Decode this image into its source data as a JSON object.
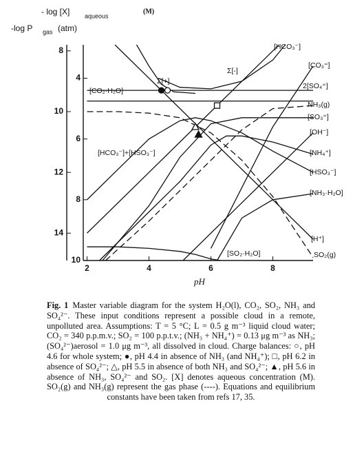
{
  "chart_data": {
    "type": "line",
    "y_label": "- log [X]",
    "y_label_sub": "aqueous",
    "y_unit": "(M)",
    "y2_label": "-log P",
    "y2_label_sub": "gas",
    "y2_unit": "(atm)",
    "x_label": "pH",
    "xlim": [
      1.9,
      9.3
    ],
    "xticks": [
      2,
      4,
      6,
      8
    ],
    "ylim": [
      10,
      2.9
    ],
    "yticks": [
      4,
      6,
      8,
      10
    ],
    "y2lim": [
      14.9,
      7.8
    ],
    "y2ticks": [
      8,
      10,
      12,
      14
    ],
    "color": "#111111",
    "series": [
      {
        "name": "[HCO₃⁻]",
        "line_style": "solid",
        "x": [
          2,
          4,
          6,
          8,
          8.2
        ],
        "values": [
          9.1,
          7.1,
          5.1,
          3.1,
          2.9
        ]
      },
      {
        "name": "[CO₃⁼]",
        "line_style": "solid",
        "x": [
          6,
          7,
          8,
          9.3
        ],
        "values": [
          9.6,
          7.6,
          5.6,
          3.6
        ]
      },
      {
        "name": "2[SO₄⁼]",
        "line_style": "solid",
        "x": [
          2,
          9.3
        ],
        "values": [
          4.4,
          4.4
        ]
      },
      {
        "name": "NH₃(g)",
        "line_style": "dashed",
        "x": [
          2.6,
          4,
          5,
          6,
          7,
          8,
          9.3
        ],
        "values": [
          10,
          8.7,
          7.7,
          6.7,
          5.7,
          5.0,
          4.9
        ]
      },
      {
        "name": "[SO₃⁼]",
        "line_style": "solid",
        "x": [
          2.5,
          4,
          5,
          6,
          7,
          8,
          9.3
        ],
        "values": [
          10,
          8.2,
          6.6,
          5.5,
          5.3,
          5.3,
          5.3
        ]
      },
      {
        "name": "[OH⁻]",
        "line_style": "solid",
        "x": [
          5.1,
          7,
          9.3
        ],
        "values": [
          10,
          8.1,
          5.8
        ]
      },
      {
        "name": "[NH₄⁺]",
        "line_style": "solid",
        "x": [
          2.4,
          4,
          5,
          6,
          6.5,
          7,
          8,
          9.3
        ],
        "values": [
          10,
          8.4,
          7.4,
          6.2,
          5.9,
          5.9,
          6.1,
          6.5
        ]
      },
      {
        "name": "[HSO₃⁻]",
        "line_style": "solid",
        "x": [
          2,
          3,
          4,
          5,
          5.5,
          6,
          7,
          8,
          9.3
        ],
        "values": [
          8,
          7,
          6,
          5.4,
          5.3,
          5.4,
          5.8,
          6.4,
          7.1
        ]
      },
      {
        "name": "[NH₃·H₂O]",
        "line_style": "solid",
        "x": [
          6.2,
          7,
          8,
          9.3
        ],
        "values": [
          10,
          8.6,
          8.0,
          7.8
        ]
      },
      {
        "name": "[H⁺]",
        "line_style": "solid",
        "x": [
          2.9,
          9.3
        ],
        "values": [
          2.9,
          9.3
        ]
      },
      {
        "name": "SO₂(g)",
        "line_style": "dashed",
        "x": [
          2,
          3,
          4,
          5,
          6,
          7,
          8,
          9.3
        ],
        "values": [
          5.1,
          5.1,
          5.15,
          5.3,
          5.8,
          6.7,
          7.9,
          9.9
        ]
      },
      {
        "name": "[SO₂·H₂O]",
        "line_style": "solid",
        "x": [
          2,
          3,
          4,
          5,
          5.5,
          6,
          6.3
        ],
        "values": [
          9.55,
          9.55,
          9.6,
          9.7,
          9.8,
          9.95,
          10
        ]
      },
      {
        "name": "[CO₂·H₂O]",
        "line_style": "solid",
        "x": [
          2,
          9.3
        ],
        "values": [
          4.75,
          4.75
        ]
      },
      {
        "name": "Σ[+]",
        "line_style": "solid",
        "x": [
          3.6,
          4,
          4.4,
          4.8,
          5.5
        ],
        "values": [
          2.9,
          3.6,
          4.2,
          4.45,
          4.5
        ]
      },
      {
        "name": "Σ[-]",
        "line_style": "solid",
        "x": [
          4.3,
          5,
          6,
          7,
          8,
          8.4
        ],
        "values": [
          4.0,
          4.3,
          4.35,
          4.1,
          3.4,
          2.9
        ]
      }
    ],
    "markers": [
      {
        "shape": "circle",
        "filled": false,
        "x": 4.6,
        "value": 4.4
      },
      {
        "shape": "circle",
        "filled": true,
        "x": 4.4,
        "value": 4.4
      },
      {
        "shape": "square",
        "filled": false,
        "x": 6.2,
        "value": 4.9
      },
      {
        "shape": "triangle",
        "filled": false,
        "x": 5.5,
        "value": 5.6
      },
      {
        "shape": "triangle",
        "filled": true,
        "x": 5.6,
        "value": 5.85
      }
    ],
    "annotation": "[HCO₃⁻]+[HSO₃⁻]"
  },
  "caption": {
    "label": "Fig. 1",
    "text": "Master variable diagram for the system H₂O(l), CO₂, SO₂, NH₃ and SO₄²⁻. These input conditions represent a possible cloud in a remote, unpolluted area. Assumptions: T = 5 °C; L = 0.5 g m⁻³ liquid cloud water; CO₂ = 340 p.p.m.v.; SO₂ = 100 p.p.t.v.; (NH₃ + NH₄⁺) = 0.13 μg m⁻³ as NH₃; (SO₄²⁻)aerosol = 1.0 μg m⁻³, all dissolved in cloud. Charge balances: ○, pH 4.6 for whole system; ●, pH 4.4 in absence of NH₃ (and NH₄⁺); □, pH 6.2 in absence of SO₄²⁻; △, pH 5.5 in absence of both NH₃ and SO₄²⁻; ▲, pH 5.6 in absence of NH₃, SO₄²⁻ and SO₂. [X] denotes aqueous concentration (M). SO₂(g) and NH₃(g) represent the gas phase (----). Equations and equilibrium constants have been taken from refs 17, 35."
  }
}
